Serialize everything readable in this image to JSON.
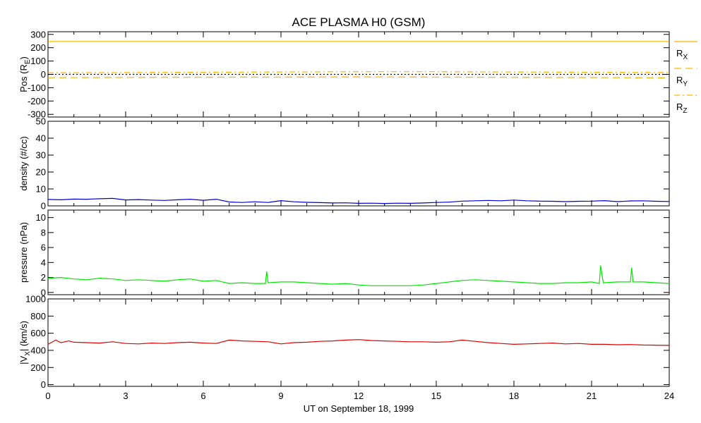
{
  "title": "ACE PLASMA H0 (GSM)",
  "x_axis": {
    "label": "UT on September 18, 1999",
    "ticks": [
      "0",
      "3",
      "6",
      "9",
      "12",
      "15",
      "18",
      "21",
      "24"
    ]
  },
  "colors": {
    "orange": "#ffb300",
    "blue": "#0000cc",
    "green": "#00e600",
    "red": "#dd0000",
    "axis": "#000000"
  },
  "legend": [
    {
      "label": "R",
      "sub": "X",
      "style": "solid"
    },
    {
      "label": "R",
      "sub": "Y",
      "style": "dashed"
    },
    {
      "label": "R",
      "sub": "Z",
      "style": "dashdot"
    }
  ],
  "panels": [
    {
      "id": "pos",
      "ylabel": "Pos (R",
      "ylabel_sub": "E",
      "ylabel_tail": ")",
      "yticks": [
        "300",
        "200",
        "100",
        "0",
        "-100",
        "-200",
        "-300"
      ]
    },
    {
      "id": "density",
      "ylabel": "density (#/cc)",
      "yticks": [
        "50",
        "40",
        "30",
        "20",
        "10",
        "0"
      ]
    },
    {
      "id": "pressure",
      "ylabel": "pressure (nPa)",
      "yticks": [
        "10",
        "8",
        "6",
        "4",
        "2",
        "0"
      ]
    },
    {
      "id": "vx",
      "ylabel": "|V",
      "ylabel_sub": "X",
      "ylabel_tail": "| (km/s)",
      "yticks": [
        "1000",
        "800",
        "600",
        "400",
        "200",
        "0"
      ]
    }
  ],
  "chart_data": [
    {
      "type": "line",
      "title": "ACE PLASMA H0 (GSM)",
      "ylabel": "Pos (RE)",
      "xlim": [
        0,
        24
      ],
      "ylim": [
        -320,
        320
      ],
      "series": [
        {
          "name": "RX",
          "color": "#ffb300",
          "style": "solid",
          "x": [
            0,
            6,
            12,
            18,
            24
          ],
          "y": [
            247,
            247,
            247,
            247,
            247
          ]
        },
        {
          "name": "RY",
          "color": "#ffb300",
          "style": "dashed",
          "x": [
            0,
            3,
            6,
            9,
            12,
            15,
            18,
            21,
            24
          ],
          "y": [
            -25,
            -23,
            -21,
            -20,
            -19,
            -20,
            -22,
            -24,
            -26
          ]
        },
        {
          "name": "RZ",
          "color": "#ffb300",
          "style": "dashdot",
          "x": [
            0,
            3,
            6,
            9,
            12,
            15,
            18,
            21,
            24
          ],
          "y": [
            12,
            14,
            16,
            18,
            20,
            20,
            18,
            16,
            14
          ]
        },
        {
          "name": "",
          "color": "#000000",
          "style": "dotted",
          "x": [
            0,
            24
          ],
          "y": [
            0,
            0
          ]
        }
      ]
    },
    {
      "type": "line",
      "ylabel": "density (#/cc)",
      "xlim": [
        0,
        24
      ],
      "ylim": [
        0,
        50
      ],
      "series": [
        {
          "name": "",
          "color": "#0000cc",
          "x": [
            0,
            0.5,
            1,
            1.5,
            2,
            2.5,
            3,
            3.5,
            4,
            4.5,
            5,
            5.5,
            6,
            6.5,
            7,
            7.5,
            8,
            8.5,
            9,
            9.5,
            10,
            10.5,
            11,
            11.5,
            12,
            12.5,
            13,
            13.5,
            14,
            14.5,
            15,
            15.5,
            16,
            16.5,
            17,
            17.5,
            18,
            18.5,
            19,
            19.5,
            20,
            20.5,
            21,
            21.5,
            22,
            22.5,
            23,
            23.5,
            24
          ],
          "y": [
            3.8,
            3.6,
            4.0,
            3.9,
            4.2,
            4.4,
            3.5,
            3.7,
            3.4,
            3.2,
            3.6,
            3.9,
            3.3,
            3.9,
            2.3,
            2.0,
            2.4,
            2.0,
            3.1,
            2.4,
            2.1,
            1.9,
            1.7,
            1.8,
            1.5,
            1.6,
            1.4,
            1.6,
            1.5,
            1.7,
            2.0,
            2.2,
            2.8,
            3.0,
            3.2,
            3.0,
            3.4,
            3.0,
            2.8,
            2.7,
            2.5,
            2.7,
            2.8,
            3.1,
            2.5,
            2.9,
            3.0,
            2.7,
            2.6
          ]
        }
      ]
    },
    {
      "type": "line",
      "ylabel": "pressure (nPa)",
      "xlim": [
        0,
        24
      ],
      "ylim": [
        0,
        11
      ],
      "series": [
        {
          "name": "",
          "color": "#00e600",
          "x": [
            0,
            0.5,
            1,
            1.5,
            2,
            2.5,
            3,
            3.5,
            4,
            4.5,
            5,
            5.5,
            6,
            6.5,
            7,
            7.5,
            8,
            8.4,
            8.45,
            8.5,
            9,
            9.5,
            10,
            10.5,
            11,
            11.5,
            12,
            12.5,
            13,
            13.5,
            14,
            14.5,
            15,
            15.5,
            16,
            16.5,
            17,
            17.5,
            18,
            18.5,
            19,
            19.5,
            20,
            20.5,
            21,
            21.3,
            21.35,
            21.45,
            21.5,
            22,
            22.5,
            22.55,
            22.6,
            23,
            23.5,
            24
          ],
          "y": [
            1.9,
            2.0,
            1.8,
            1.7,
            1.9,
            1.8,
            1.6,
            1.7,
            1.6,
            1.5,
            1.7,
            1.8,
            1.5,
            1.6,
            1.2,
            1.3,
            1.2,
            1.2,
            2.8,
            1.3,
            1.4,
            1.4,
            1.3,
            1.2,
            1.1,
            1.2,
            1.0,
            0.9,
            0.9,
            0.9,
            0.9,
            1.0,
            1.2,
            1.4,
            1.6,
            1.7,
            1.6,
            1.5,
            1.4,
            1.3,
            1.2,
            1.2,
            1.3,
            1.3,
            1.4,
            1.2,
            3.6,
            1.3,
            1.3,
            1.4,
            1.4,
            3.3,
            1.4,
            1.4,
            1.3,
            1.2
          ]
        }
      ]
    },
    {
      "type": "line",
      "ylabel": "|VX| (km/s)",
      "xlim": [
        0,
        24
      ],
      "ylim": [
        0,
        1000
      ],
      "series": [
        {
          "name": "",
          "color": "#dd0000",
          "x": [
            0,
            0.3,
            0.5,
            0.8,
            1,
            1.5,
            2,
            2.5,
            3,
            3.5,
            4,
            4.5,
            5,
            5.5,
            6,
            6.5,
            7,
            7.5,
            8,
            8.5,
            9,
            9.5,
            10,
            10.5,
            11,
            11.5,
            12,
            12.5,
            13,
            13.5,
            14,
            14.5,
            15,
            15.5,
            16,
            16.5,
            17,
            17.5,
            18,
            18.5,
            19,
            19.5,
            20,
            20.5,
            21,
            21.5,
            22,
            22.5,
            23,
            23.5,
            24
          ],
          "y": [
            470,
            520,
            490,
            510,
            495,
            490,
            485,
            500,
            480,
            475,
            485,
            480,
            490,
            495,
            485,
            480,
            520,
            510,
            505,
            500,
            475,
            490,
            495,
            505,
            510,
            520,
            525,
            515,
            510,
            505,
            500,
            500,
            495,
            500,
            520,
            505,
            490,
            480,
            470,
            475,
            480,
            485,
            475,
            480,
            470,
            470,
            465,
            468,
            462,
            460,
            458
          ]
        }
      ]
    }
  ]
}
